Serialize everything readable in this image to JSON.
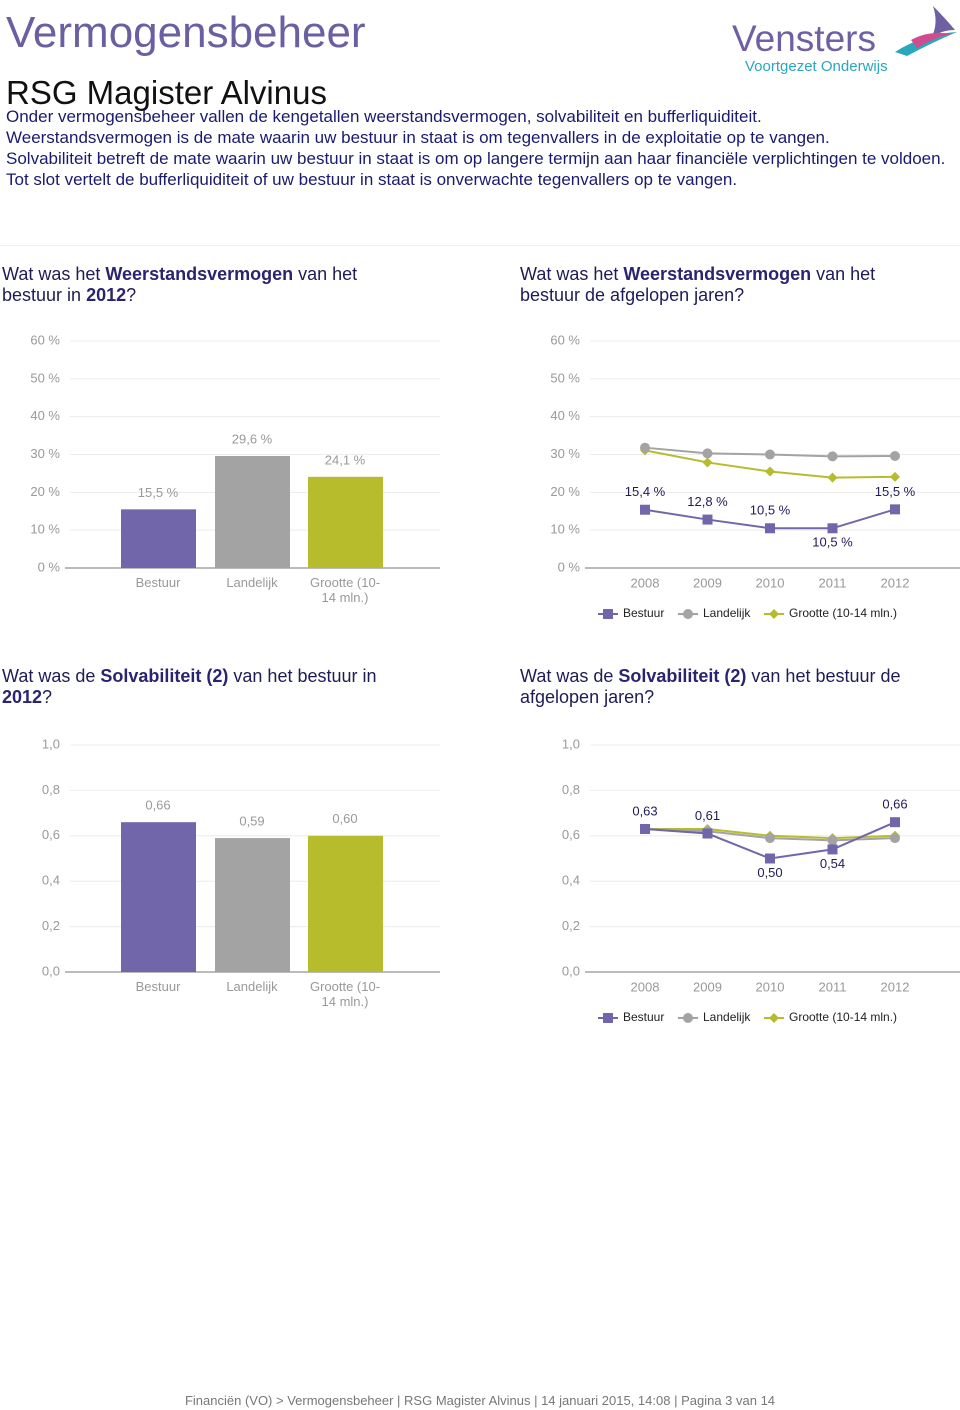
{
  "header": {
    "title": "Vermogensbeheer",
    "subtitle": "RSG Magister Alvinus",
    "logo_name": "Vensters",
    "logo_tagline": "Voortgezet Onderwijs"
  },
  "intro": [
    "Onder vermogensbeheer vallen de kengetallen weerstandsvermogen, solvabiliteit en bufferliquiditeit.",
    "Weerstandsvermogen is de mate waarin uw bestuur in staat is om tegenvallers in de exploitatie op te vangen.",
    "Solvabiliteit betreft de mate waarin uw bestuur in staat is om op langere termijn aan haar financiële verplichtingen te voldoen. Tot slot vertelt de bufferliquiditeit of uw bestuur in staat is onverwachte tegenvallers op te vangen."
  ],
  "chart_data": [
    {
      "type": "bar",
      "title": [
        "Wat was het ",
        "Weerstandsvermogen",
        " van het bestuur in ",
        "2012",
        "?"
      ],
      "categories": [
        "Bestuur",
        "Landelijk",
        "Grootte (10-14 mln.)"
      ],
      "values": [
        15.5,
        29.6,
        24.1
      ],
      "value_labels": [
        "15,5 %",
        "29,6 %",
        "24,1 %"
      ],
      "colors": [
        "#7166a9",
        "#a3a3a3",
        "#b6bc2c"
      ],
      "ylim": [
        0,
        60
      ],
      "yticks": [
        {
          "value": 0,
          "label": "0 %"
        },
        {
          "value": 10,
          "label": "10 %"
        },
        {
          "value": 20,
          "label": "20 %"
        },
        {
          "value": 30,
          "label": "30 %"
        },
        {
          "value": 40,
          "label": "40 %"
        },
        {
          "value": 50,
          "label": "50 %"
        },
        {
          "value": 60,
          "label": "60 %"
        }
      ],
      "grid": true
    },
    {
      "type": "line",
      "title": [
        "Wat was het ",
        "Weerstandsvermogen",
        " van het bestuur de afgelopen jaren?"
      ],
      "categories": [
        "2008",
        "2009",
        "2010",
        "2011",
        "2012"
      ],
      "series": [
        {
          "name": "Bestuur",
          "color": "#7166a9",
          "marker": "square",
          "values": [
            15.4,
            12.8,
            10.5,
            10.5,
            15.5
          ],
          "value_labels": [
            "15,4 %",
            "12,8 %",
            "10,5 %",
            "10,5 %",
            "15,5 %"
          ]
        },
        {
          "name": "Landelijk",
          "color": "#a3a3a3",
          "marker": "circle",
          "values": [
            31.8,
            30.3,
            30.0,
            29.5,
            29.6
          ]
        },
        {
          "name": "Grootte (10-14 mln.)",
          "color": "#b6bc2c",
          "marker": "diamond",
          "values": [
            31.1,
            27.9,
            25.5,
            23.9,
            24.1
          ]
        }
      ],
      "ylim": [
        0,
        60
      ],
      "yticks": [
        {
          "value": 0,
          "label": "0 %"
        },
        {
          "value": 10,
          "label": "10 %"
        },
        {
          "value": 20,
          "label": "20 %"
        },
        {
          "value": 30,
          "label": "30 %"
        },
        {
          "value": 40,
          "label": "40 %"
        },
        {
          "value": 50,
          "label": "50 %"
        },
        {
          "value": 60,
          "label": "60 %"
        }
      ],
      "grid": true
    },
    {
      "type": "bar",
      "title": [
        "Wat was de ",
        "Solvabiliteit (2)",
        " van het bestuur in ",
        "2012",
        "?"
      ],
      "categories": [
        "Bestuur",
        "Landelijk",
        "Grootte (10-14 mln.)"
      ],
      "values": [
        0.66,
        0.59,
        0.6
      ],
      "value_labels": [
        "0,66",
        "0,59",
        "0,60"
      ],
      "colors": [
        "#7166a9",
        "#a3a3a3",
        "#b6bc2c"
      ],
      "ylim": [
        0,
        1
      ],
      "yticks": [
        {
          "value": 0,
          "label": "0,0"
        },
        {
          "value": 0.2,
          "label": "0,2"
        },
        {
          "value": 0.4,
          "label": "0,4"
        },
        {
          "value": 0.6,
          "label": "0,6"
        },
        {
          "value": 0.8,
          "label": "0,8"
        },
        {
          "value": 1,
          "label": "1,0"
        }
      ],
      "grid": true
    },
    {
      "type": "line",
      "title": [
        "Wat was de ",
        "Solvabiliteit (2)",
        " van het bestuur de afgelopen jaren?"
      ],
      "categories": [
        "2008",
        "2009",
        "2010",
        "2011",
        "2012"
      ],
      "series": [
        {
          "name": "Bestuur",
          "color": "#7166a9",
          "marker": "square",
          "values": [
            0.63,
            0.61,
            0.5,
            0.54,
            0.66
          ],
          "value_labels": [
            "0,63",
            "0,61",
            "0,50",
            "0,54",
            "0,66"
          ]
        },
        {
          "name": "Landelijk",
          "color": "#a3a3a3",
          "marker": "circle",
          "values": [
            0.63,
            0.62,
            0.59,
            0.58,
            0.59
          ]
        },
        {
          "name": "Grootte (10-14 mln.)",
          "color": "#b6bc2c",
          "marker": "diamond",
          "values": [
            0.63,
            0.63,
            0.6,
            0.59,
            0.6
          ]
        }
      ],
      "ylim": [
        0,
        1
      ],
      "yticks": [
        {
          "value": 0,
          "label": "0,0"
        },
        {
          "value": 0.2,
          "label": "0,2"
        },
        {
          "value": 0.4,
          "label": "0,4"
        },
        {
          "value": 0.6,
          "label": "0,6"
        },
        {
          "value": 0.8,
          "label": "0,8"
        },
        {
          "value": 1,
          "label": "1,0"
        }
      ],
      "grid": true
    }
  ],
  "footer": "Financiën (VO) > Vermogensbeheer | RSG Magister Alvinus | 14 januari 2015, 14:08 | Pagina 3 van 14"
}
